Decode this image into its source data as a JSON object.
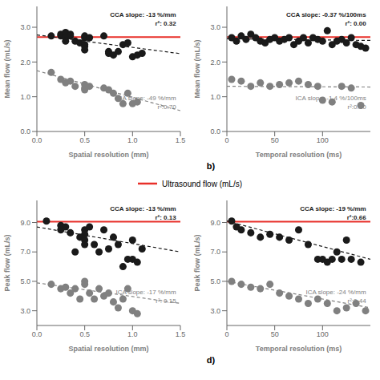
{
  "chart_data": [
    {
      "type": "scatter",
      "xlabel": "Spatial resolution (mm)",
      "ylabel": "Mean flow (mL/s)",
      "xlim": [
        0.0,
        1.5
      ],
      "ylim": [
        0.0,
        3.6
      ],
      "xticks": [
        {
          "value": 0.0,
          "label": "0.0"
        },
        {
          "value": 0.5,
          "label": "0.5"
        },
        {
          "value": 1.0,
          "label": "1.0"
        },
        {
          "value": 1.5,
          "label": "1.5"
        }
      ],
      "yticks": [
        {
          "value": 0.0,
          "label": "0.0"
        },
        {
          "value": 1.0,
          "label": "1.0"
        },
        {
          "value": 2.0,
          "label": "2.0"
        },
        {
          "value": 3.0,
          "label": "3.0"
        }
      ],
      "series": [
        {
          "type": "scatter",
          "color": "#1a1a1a",
          "annotations": [
            "CCA slope: -13 %/mm",
            "r²: 0.32"
          ],
          "x": [
            0.15,
            0.25,
            0.25,
            0.3,
            0.3,
            0.3,
            0.35,
            0.35,
            0.4,
            0.45,
            0.5,
            0.5,
            0.5,
            0.5,
            0.5,
            0.55,
            0.7,
            0.75,
            0.75,
            0.8,
            0.85,
            0.9,
            0.95,
            1.0,
            1.05,
            1.1
          ],
          "values": [
            2.75,
            2.8,
            2.75,
            2.85,
            2.7,
            2.6,
            2.8,
            2.75,
            2.6,
            2.55,
            2.7,
            2.75,
            2.5,
            2.45,
            2.35,
            2.7,
            2.75,
            2.3,
            2.25,
            2.2,
            2.3,
            2.5,
            2.55,
            2.15,
            2.2,
            2.25
          ]
        },
        {
          "type": "scatter",
          "color": "#808080",
          "annotations": [
            "ICA slope: -49 %/mm",
            "r²:0.70"
          ],
          "x": [
            0.15,
            0.25,
            0.3,
            0.35,
            0.4,
            0.5,
            0.5,
            0.5,
            0.55,
            0.7,
            0.75,
            0.8,
            0.85,
            0.9,
            0.95,
            1.0,
            1.05
          ],
          "values": [
            1.7,
            1.5,
            1.4,
            1.45,
            1.3,
            1.35,
            1.25,
            1.2,
            1.3,
            1.25,
            1.2,
            1.1,
            0.95,
            0.8,
            1.1,
            0.8,
            0.85
          ]
        },
        {
          "type": "line",
          "line_style": "dashed",
          "color": "#1a1a1a",
          "x": [
            0.0,
            1.5
          ],
          "values": [
            2.78,
            2.24
          ]
        },
        {
          "type": "line",
          "line_style": "dashed",
          "color": "#808080",
          "x": [
            0.0,
            1.5
          ],
          "values": [
            1.75,
            0.6
          ]
        },
        {
          "type": "hline",
          "name": "Ultrasound flow (mL/s)",
          "color": "#e8302a",
          "values": [
            2.72
          ]
        }
      ]
    },
    {
      "type": "scatter",
      "xlabel": "Temporal resolution (ms)",
      "ylabel": "Mean flow (mL/s)",
      "xlim": [
        0,
        150
      ],
      "ylim": [
        0.0,
        3.6
      ],
      "xticks": [
        0,
        50,
        100
      ],
      "yticks": [
        {
          "value": 0.0,
          "label": "0.0"
        },
        {
          "value": 1.0,
          "label": "1.0"
        },
        {
          "value": 2.0,
          "label": "2.0"
        },
        {
          "value": 3.0,
          "label": "3.0"
        }
      ],
      "annotations": [
        "b)"
      ],
      "series": [
        {
          "type": "scatter",
          "color": "#1a1a1a",
          "annotations": [
            "CCA slope: -0.37 %/100ms",
            "r²: 0.00"
          ],
          "x": [
            5,
            10,
            15,
            20,
            25,
            30,
            35,
            40,
            45,
            50,
            55,
            60,
            65,
            70,
            75,
            80,
            85,
            90,
            95,
            100,
            105,
            110,
            115,
            120,
            125,
            130,
            135,
            140,
            145
          ],
          "values": [
            2.7,
            2.6,
            2.75,
            2.65,
            2.8,
            2.7,
            2.6,
            2.55,
            2.65,
            2.7,
            2.6,
            2.65,
            2.7,
            2.5,
            2.6,
            2.7,
            2.55,
            2.7,
            2.65,
            2.6,
            2.9,
            2.5,
            2.6,
            2.65,
            2.55,
            2.7,
            2.5,
            2.45,
            2.4
          ]
        },
        {
          "type": "scatter",
          "color": "#808080",
          "annotations": [
            "ICA slope: -1.4 %/100ms",
            "r²:0.00"
          ],
          "x": [
            5,
            15,
            25,
            35,
            45,
            55,
            65,
            75,
            85,
            95,
            100,
            110,
            120,
            130,
            140
          ],
          "values": [
            1.5,
            1.45,
            1.3,
            1.4,
            1.3,
            1.35,
            1.4,
            1.45,
            1.35,
            1.3,
            0.9,
            0.85,
            1.3,
            1.25,
            0.75
          ]
        },
        {
          "type": "line",
          "line_style": "dashed",
          "color": "#1a1a1a",
          "x": [
            0,
            150
          ],
          "values": [
            2.67,
            2.62
          ]
        },
        {
          "type": "line",
          "line_style": "dashed",
          "color": "#808080",
          "x": [
            0,
            150
          ],
          "values": [
            1.3,
            1.28
          ]
        },
        {
          "type": "hline",
          "color": "#e8302a",
          "values": [
            2.72
          ]
        }
      ]
    },
    {
      "type": "scatter",
      "xlabel": "Spatial resolution (mm)",
      "ylabel": "Peak flow (mL/s)",
      "xlim": [
        0.0,
        1.5
      ],
      "ylim": [
        2.0,
        10.5
      ],
      "xticks": [
        {
          "value": 0.0,
          "label": "0.0"
        },
        {
          "value": 0.5,
          "label": "0.5"
        },
        {
          "value": 1.0,
          "label": "1.0"
        },
        {
          "value": 1.5,
          "label": "1.5"
        }
      ],
      "yticks": [
        {
          "value": 3.0,
          "label": "3.0"
        },
        {
          "value": 5.0,
          "label": "5.0"
        },
        {
          "value": 7.0,
          "label": "7.0"
        },
        {
          "value": 9.0,
          "label": "9.0"
        }
      ],
      "series": [
        {
          "type": "scatter",
          "color": "#1a1a1a",
          "annotations": [
            "CCA slope: -13 %/mm",
            "r²: 0.13"
          ],
          "x": [
            0.1,
            0.25,
            0.25,
            0.3,
            0.35,
            0.4,
            0.45,
            0.5,
            0.5,
            0.5,
            0.5,
            0.55,
            0.6,
            0.65,
            0.7,
            0.75,
            0.8,
            0.85,
            0.9,
            0.95,
            1.0,
            1.0,
            1.05,
            1.1
          ],
          "values": [
            9.1,
            8.8,
            8.5,
            8.7,
            8.3,
            7.0,
            8.0,
            8.5,
            7.8,
            8.2,
            7.5,
            8.7,
            7.5,
            7.0,
            8.5,
            7.2,
            8.0,
            7.5,
            6.0,
            6.5,
            6.5,
            7.8,
            6.3,
            7.2
          ]
        },
        {
          "type": "scatter",
          "color": "#808080",
          "annotations": [
            "ICA slope: -17 %/mm",
            "r²: 0.15"
          ],
          "x": [
            0.15,
            0.25,
            0.3,
            0.35,
            0.4,
            0.45,
            0.5,
            0.5,
            0.55,
            0.6,
            0.65,
            0.7,
            0.75,
            0.8,
            0.85,
            0.9,
            0.95,
            1.0,
            1.05
          ],
          "values": [
            4.8,
            4.5,
            4.6,
            4.2,
            4.5,
            3.8,
            5.0,
            4.8,
            4.2,
            3.8,
            4.5,
            4.0,
            4.2,
            3.6,
            3.2,
            3.8,
            4.5,
            3.0,
            2.8
          ]
        },
        {
          "type": "line",
          "line_style": "dashed",
          "color": "#1a1a1a",
          "x": [
            0.0,
            1.5
          ],
          "values": [
            8.7,
            7.0
          ]
        },
        {
          "type": "line",
          "line_style": "dashed",
          "color": "#808080",
          "x": [
            0.0,
            1.5
          ],
          "values": [
            4.9,
            3.5
          ]
        },
        {
          "type": "hline",
          "color": "#e8302a",
          "values": [
            9.05
          ]
        }
      ]
    },
    {
      "type": "scatter",
      "xlabel": "Temporal resolution (ms)",
      "ylabel": "Peak flow (mL/s)",
      "xlim": [
        0,
        150
      ],
      "ylim": [
        2.0,
        10.5
      ],
      "xticks": [
        0,
        50,
        100
      ],
      "yticks": [
        {
          "value": 3.0,
          "label": "3.0"
        },
        {
          "value": 5.0,
          "label": "5.0"
        },
        {
          "value": 7.0,
          "label": "7.0"
        },
        {
          "value": 9.0,
          "label": "9.0"
        }
      ],
      "annotations": [
        "d)"
      ],
      "series": [
        {
          "type": "scatter",
          "color": "#1a1a1a",
          "annotations": [
            "CCA slope: -19 %/mm",
            "r²:0.66"
          ],
          "x": [
            5,
            10,
            15,
            25,
            35,
            45,
            55,
            65,
            75,
            85,
            95,
            100,
            105,
            110,
            115,
            120,
            125,
            130,
            140
          ],
          "values": [
            9.1,
            8.7,
            8.5,
            8.3,
            8.0,
            8.2,
            8.0,
            7.8,
            8.5,
            7.5,
            6.5,
            6.5,
            6.3,
            6.5,
            7.0,
            6.5,
            7.8,
            6.5,
            6.3
          ]
        },
        {
          "type": "scatter",
          "color": "#808080",
          "annotations": [
            "ICA slope: -24 %/mm",
            "r²:0.44"
          ],
          "x": [
            5,
            15,
            25,
            35,
            45,
            55,
            65,
            75,
            85,
            95,
            105,
            115,
            125,
            135,
            145
          ],
          "values": [
            5.0,
            4.8,
            4.6,
            4.5,
            4.8,
            4.2,
            4.0,
            3.8,
            3.5,
            3.8,
            3.5,
            3.0,
            3.2,
            3.5,
            3.0
          ]
        },
        {
          "type": "line",
          "line_style": "dashed",
          "color": "#1a1a1a",
          "x": [
            0,
            150
          ],
          "values": [
            9.1,
            6.5
          ]
        },
        {
          "type": "line",
          "line_style": "dashed",
          "color": "#808080",
          "x": [
            0,
            150
          ],
          "values": [
            5.0,
            3.2
          ]
        },
        {
          "type": "hline",
          "color": "#e8302a",
          "values": [
            9.05
          ]
        }
      ]
    }
  ]
}
